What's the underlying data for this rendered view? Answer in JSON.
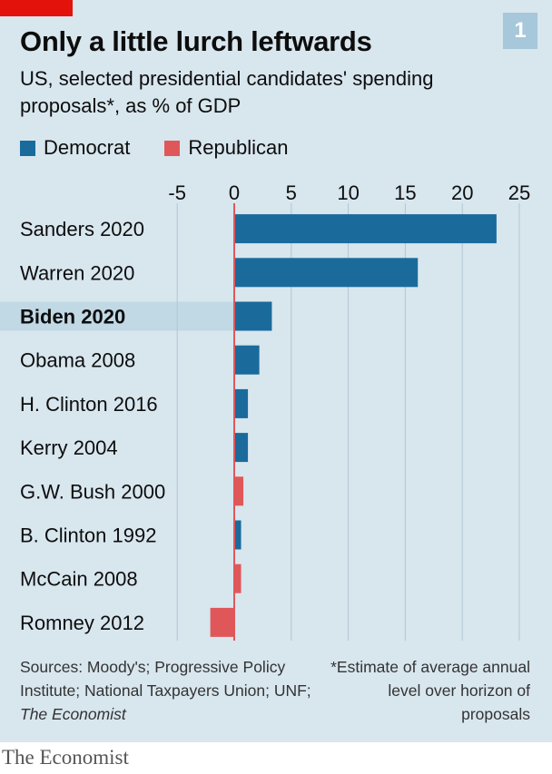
{
  "header": {
    "badge": "1",
    "title": "Only a little lurch leftwards",
    "subtitle": "US, selected presidential candidates' spending proposals*, as % of GDP"
  },
  "legend": {
    "democrat": "Democrat",
    "republican": "Republican"
  },
  "colors": {
    "democrat": "#1a6b9c",
    "republican": "#e0575a",
    "highlight": "#c1d8e5",
    "background": "#d8e6ee",
    "zero_line": "#e0575a"
  },
  "chart_data": {
    "type": "bar",
    "orientation": "horizontal",
    "categories": [
      {
        "name": "Sanders",
        "year": "2020",
        "party": "democrat",
        "highlight": false,
        "value": 23
      },
      {
        "name": "Warren",
        "year": "2020",
        "party": "democrat",
        "highlight": false,
        "value": 16.1
      },
      {
        "name": "Biden",
        "year": "2020",
        "party": "democrat",
        "highlight": true,
        "value": 3.3
      },
      {
        "name": "Obama",
        "year": "2008",
        "party": "democrat",
        "highlight": false,
        "value": 2.2
      },
      {
        "name": "H. Clinton",
        "year": "2016",
        "party": "democrat",
        "highlight": false,
        "value": 1.2
      },
      {
        "name": "Kerry",
        "year": "2004",
        "party": "democrat",
        "highlight": false,
        "value": 1.2
      },
      {
        "name": "G.W. Bush",
        "year": "2000",
        "party": "republican",
        "highlight": false,
        "value": 0.8
      },
      {
        "name": "B. Clinton",
        "year": "1992",
        "party": "democrat",
        "highlight": false,
        "value": 0.6
      },
      {
        "name": "McCain",
        "year": "2008",
        "party": "republican",
        "highlight": false,
        "value": 0.6
      },
      {
        "name": "Romney",
        "year": "2012",
        "party": "republican",
        "highlight": false,
        "value": -2.1
      }
    ],
    "xlim": [
      -5,
      25
    ],
    "xticks": [
      "-5",
      "0",
      "5",
      "10",
      "15",
      "20",
      "25"
    ],
    "grid": true
  },
  "footnotes": {
    "sources": "Sources: Moody's; Progressive Policy Institute; National Taxpayers Union; UNF;",
    "sources_italic": "The Economist",
    "note": "*Estimate of average annual level over horizon of proposals"
  },
  "brand": "The Economist"
}
